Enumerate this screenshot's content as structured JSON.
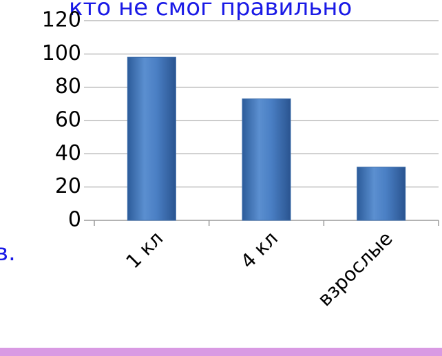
{
  "slide_text": [
    "кто не смог правильно",
    "в."
  ],
  "chart_data": {
    "type": "bar",
    "categories": [
      "1 кл",
      "4 кл",
      "взрослые"
    ],
    "values": [
      98,
      73,
      32
    ],
    "color": "#4f81bd",
    "ylim": [
      0,
      120
    ],
    "yticks": [
      0,
      20,
      40,
      60,
      80,
      100,
      120
    ],
    "grid": true
  }
}
